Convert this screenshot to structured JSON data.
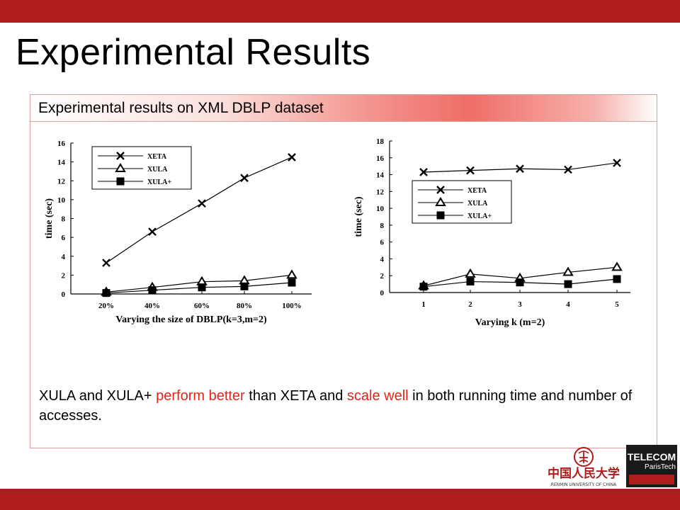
{
  "slide": {
    "title": "Experimental Results",
    "panel_header": "Experimental results on XML DBLP dataset",
    "conclusion": {
      "p1": "XULA and XULA+ ",
      "h1": "perform better",
      "p2": " than XETA and ",
      "h2": "scale well",
      "p3": " in both running time and number of accesses."
    }
  },
  "colors": {
    "bar": "#b01c1c",
    "highlight": "#e3241b",
    "header_gradient_peak": "#ef6e68"
  },
  "logos": {
    "ruc_text": "中国人民大学",
    "ruc_sub": "RENMIN UNIVERSITY OF CHINA",
    "telecom_line1": "TELECOM",
    "telecom_line2": "ParisTech"
  },
  "chart_data": [
    {
      "type": "line",
      "categories": [
        "20%",
        "40%",
        "60%",
        "80%",
        "100%"
      ],
      "series": [
        {
          "name": "XETA",
          "marker": "x",
          "values": [
            3.3,
            6.6,
            9.6,
            12.3,
            14.5
          ]
        },
        {
          "name": "XULA",
          "marker": "triangle",
          "values": [
            0.2,
            0.7,
            1.3,
            1.4,
            2.0
          ]
        },
        {
          "name": "XULA+",
          "marker": "square",
          "values": [
            0.1,
            0.4,
            0.7,
            0.8,
            1.2
          ]
        }
      ],
      "ylim": [
        0,
        16
      ],
      "yticks": [
        0,
        2,
        4,
        6,
        8,
        10,
        12,
        14,
        16
      ],
      "xlabel": "Varying the size of DBLP(k=3,m=2)",
      "ylabel": "time (sec)",
      "legend": "top-left",
      "grid": false
    },
    {
      "type": "line",
      "categories": [
        "1",
        "2",
        "3",
        "4",
        "5"
      ],
      "series": [
        {
          "name": "XETA",
          "marker": "x",
          "values": [
            14.3,
            14.5,
            14.7,
            14.6,
            15.4
          ]
        },
        {
          "name": "XULA",
          "marker": "triangle",
          "values": [
            0.8,
            2.2,
            1.7,
            2.4,
            3.0
          ]
        },
        {
          "name": "XULA+",
          "marker": "square",
          "values": [
            0.7,
            1.3,
            1.2,
            1.0,
            1.6
          ]
        }
      ],
      "ylim": [
        0,
        18
      ],
      "yticks": [
        0,
        2,
        4,
        6,
        8,
        10,
        12,
        14,
        16,
        18
      ],
      "xlabel": "Varying k (m=2)",
      "ylabel": "time (sec)",
      "legend": "middle-left",
      "grid": false
    }
  ]
}
